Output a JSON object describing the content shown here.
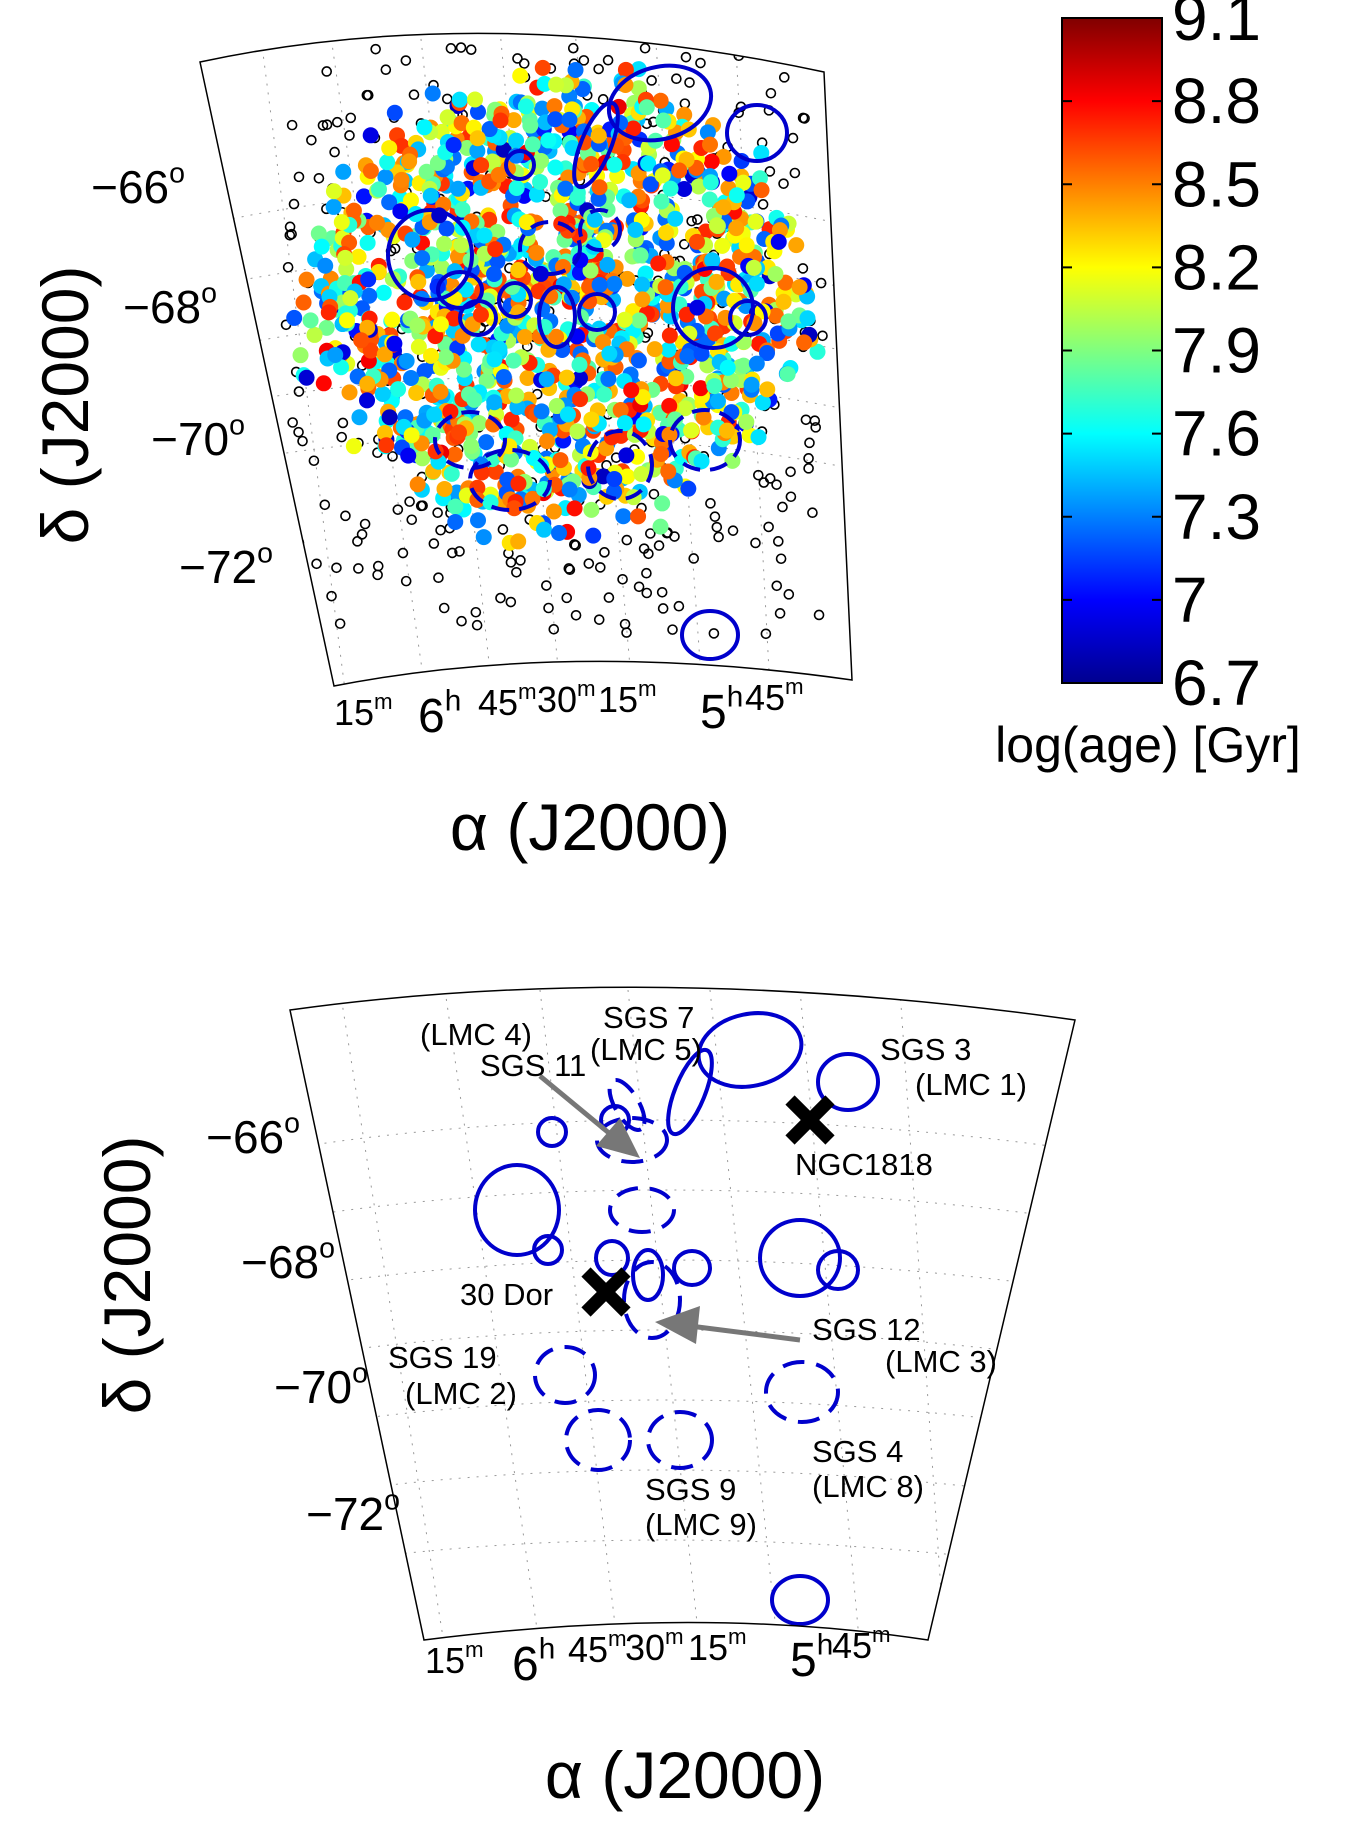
{
  "chart_data": [
    {
      "type": "scatter",
      "panel": "top",
      "xlabel": "α (J2000)",
      "ylabel": "δ (J2000)",
      "ra_ticks": [
        {
          "main": "15",
          "sup": "m"
        },
        {
          "main": "6",
          "sup": "h"
        },
        {
          "main": "45",
          "sup": "m"
        },
        {
          "main": "30",
          "sup": "m"
        },
        {
          "main": "15",
          "sup": "m"
        },
        {
          "main": "5",
          "sup": "h"
        },
        {
          "main": "45",
          "sup": "m"
        }
      ],
      "dec_ticks": [
        {
          "main": "−66",
          "sup": "o",
          "value": -66
        },
        {
          "main": "−68",
          "sup": "o",
          "value": -68
        },
        {
          "main": "−70",
          "sup": "o",
          "value": -70
        },
        {
          "main": "−72",
          "sup": "o",
          "value": -72
        }
      ],
      "colorbar": {
        "label": "log(age) [Gyr]",
        "ticks": [
          "9.1",
          "8.8",
          "8.5",
          "8.2",
          "7.9",
          "7.6",
          "7.3",
          "7",
          "6.7"
        ],
        "range": [
          6.7,
          9.1
        ],
        "colors": [
          "#00008f",
          "#0000ff",
          "#00ffff",
          "#ffff00",
          "#ff0000",
          "#800000"
        ]
      },
      "grid": "dotted",
      "marker_colors": {
        "unaged_cluster": "#000000",
        "shell": "#0000cc"
      }
    },
    {
      "type": "scatter",
      "panel": "bottom",
      "xlabel": "α (J2000)",
      "ylabel": "δ (J2000)",
      "ra_ticks": [
        {
          "main": "15",
          "sup": "m"
        },
        {
          "main": "6",
          "sup": "h"
        },
        {
          "main": "45",
          "sup": "m"
        },
        {
          "main": "30",
          "sup": "m"
        },
        {
          "main": "15",
          "sup": "m"
        },
        {
          "main": "5",
          "sup": "h"
        },
        {
          "main": "45",
          "sup": "m"
        }
      ],
      "dec_ticks": [
        {
          "main": "−66",
          "sup": "o",
          "value": -66
        },
        {
          "main": "−68",
          "sup": "o",
          "value": -68
        },
        {
          "main": "−70",
          "sup": "o",
          "value": -70
        },
        {
          "main": "−72",
          "sup": "o",
          "value": -72
        }
      ],
      "annotations": [
        {
          "id": "sgs7",
          "lines": [
            "SGS 7",
            "(LMC 5)"
          ]
        },
        {
          "id": "sgs11",
          "lines": [
            "(LMC 4)",
            "SGS 11"
          ]
        },
        {
          "id": "sgs3",
          "lines": [
            "SGS 3",
            "(LMC 1)"
          ]
        },
        {
          "id": "ngc1818",
          "lines": [
            "NGC1818"
          ]
        },
        {
          "id": "dor30",
          "lines": [
            "30 Dor"
          ]
        },
        {
          "id": "sgs12",
          "lines": [
            "SGS 12",
            "(LMC 3)"
          ]
        },
        {
          "id": "sgs19",
          "lines": [
            "SGS 19",
            "(LMC 2)"
          ]
        },
        {
          "id": "sgs4",
          "lines": [
            "SGS 4",
            "(LMC 8)"
          ]
        },
        {
          "id": "sgs9",
          "lines": [
            "SGS 9",
            "(LMC 9)"
          ]
        }
      ],
      "markers": [
        {
          "id": "ngc1818",
          "symbol": "x",
          "color": "#000000"
        },
        {
          "id": "dor30",
          "symbol": "x",
          "color": "#000000"
        }
      ],
      "grid": "dotted",
      "marker_colors": {
        "shell": "#0000cc",
        "arrow": "#777777"
      }
    }
  ]
}
